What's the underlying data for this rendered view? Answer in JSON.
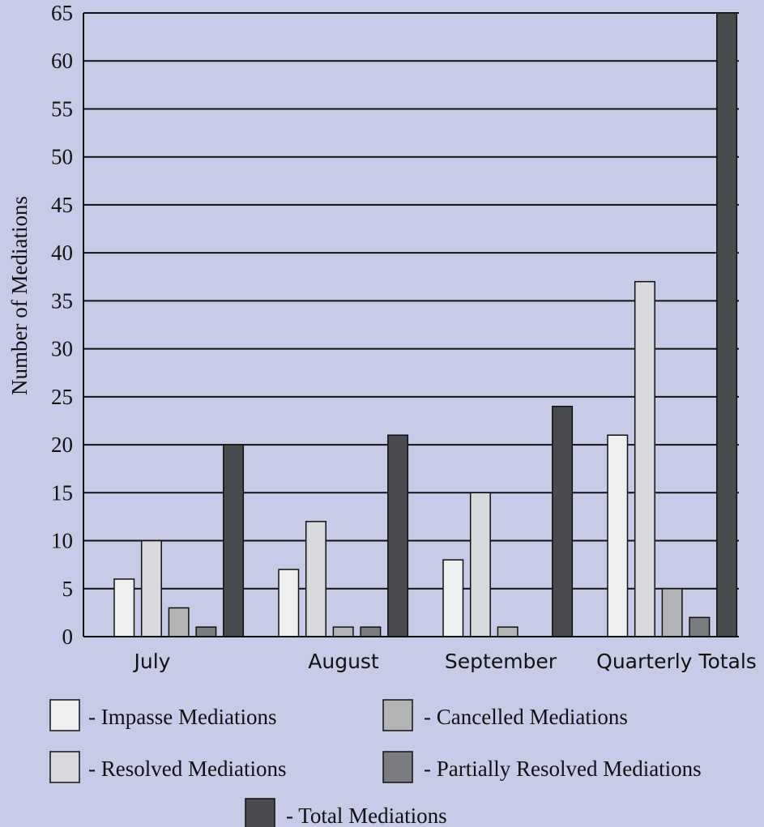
{
  "chart_data": {
    "type": "bar",
    "ylabel": "Number of Mediations",
    "ylim": [
      0,
      65
    ],
    "yticks": [
      0,
      5,
      10,
      15,
      20,
      25,
      30,
      35,
      40,
      45,
      50,
      55,
      60,
      65
    ],
    "grid": true,
    "categories": [
      "July",
      "August",
      "September",
      "Quarterly Totals"
    ],
    "series": [
      {
        "name": "- Impasse Mediations",
        "color": "#eeeff0",
        "values": [
          6,
          7,
          8,
          21
        ]
      },
      {
        "name": "- Resolved Mediations",
        "color": "#d8d9dc",
        "values": [
          10,
          12,
          15,
          37
        ]
      },
      {
        "name": "- Cancelled Mediations",
        "color": "#b2b3b5",
        "values": [
          3,
          1,
          1,
          5
        ]
      },
      {
        "name": "- Partially Resolved Mediations",
        "color": "#7b7c80",
        "values": [
          1,
          1,
          null,
          2
        ]
      },
      {
        "name": "- Total Mediations",
        "color": "#4a4b4f",
        "values": [
          20,
          21,
          24,
          65
        ]
      }
    ],
    "legend_position": "bottom"
  }
}
